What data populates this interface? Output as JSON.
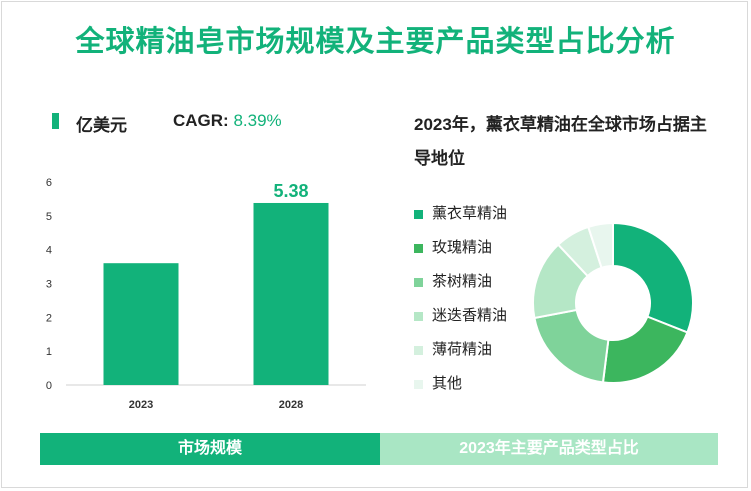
{
  "title": "全球精油皂市场规模及主要产品类型占比分析",
  "left_panel": {
    "unit": "亿美元",
    "cagr_label": "CAGR:",
    "cagr_value": "8.39%"
  },
  "right_panel": {
    "title": "2023年，薰衣草精油在全球市场占据主导地位"
  },
  "bands": {
    "left": "市场规模",
    "right": "2023年主要产品类型占比"
  },
  "colors": {
    "accent": "#12b27a",
    "band_right": "#a9e6c4"
  },
  "chart_data": [
    {
      "type": "bar",
      "categories": [
        "2023",
        "2028"
      ],
      "values": [
        3.6,
        5.38
      ],
      "data_labels": [
        "",
        "5.38"
      ],
      "ylim": [
        0,
        6
      ],
      "yticks": [
        "0",
        "1",
        "2",
        "3",
        "4",
        "5",
        "6"
      ],
      "bar_color": "#12b27a",
      "grid": false
    },
    {
      "type": "pie",
      "donut": true,
      "legend_position": "left",
      "series": [
        {
          "name": "薰衣草精油",
          "value": 31,
          "color": "#12b27a"
        },
        {
          "name": "玫瑰精油",
          "value": 21,
          "color": "#3cb65e"
        },
        {
          "name": "茶树精油",
          "value": 20,
          "color": "#7fd39a"
        },
        {
          "name": "迷迭香精油",
          "value": 16,
          "color": "#b5e7c6"
        },
        {
          "name": "薄荷精油",
          "value": 7,
          "color": "#d4f0de"
        },
        {
          "name": "其他",
          "value": 5,
          "color": "#e8f6ee"
        }
      ]
    }
  ]
}
